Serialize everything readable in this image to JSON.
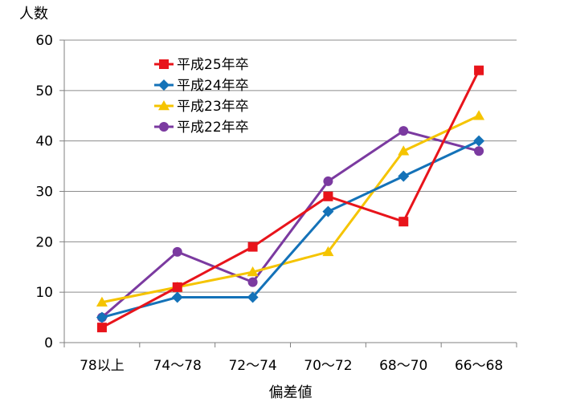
{
  "chart_data": {
    "type": "line",
    "title": "",
    "xlabel": "偏差値",
    "ylabel": "人数",
    "ylim": [
      0,
      60
    ],
    "yticks": [
      0,
      10,
      20,
      30,
      40,
      50,
      60
    ],
    "grid": true,
    "legend_position": "top-left",
    "categories": [
      "78以上",
      "74～78",
      "72～74",
      "70～72",
      "68～70",
      "66～68"
    ],
    "series": [
      {
        "name": "平成25年卒",
        "color": "#e8141b",
        "marker": "square",
        "values": [
          3,
          11,
          19,
          29,
          24,
          54
        ]
      },
      {
        "name": "平成24年卒",
        "color": "#1472b8",
        "marker": "diamond",
        "values": [
          5,
          9,
          9,
          26,
          33,
          40
        ]
      },
      {
        "name": "平成23年卒",
        "color": "#f5c400",
        "marker": "triangle",
        "values": [
          8,
          11,
          14,
          18,
          38,
          45
        ]
      },
      {
        "name": "平成22年卒",
        "color": "#7b3aa0",
        "marker": "circle",
        "values": [
          5,
          18,
          12,
          32,
          42,
          38
        ]
      }
    ]
  }
}
